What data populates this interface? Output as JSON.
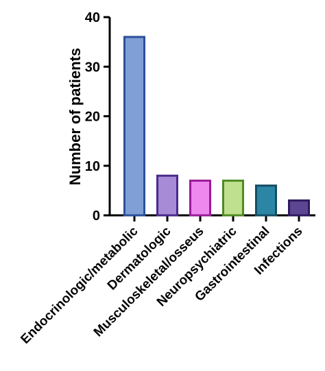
{
  "chart_data": {
    "type": "bar",
    "title": "",
    "xlabel": "",
    "ylabel": "Number of patients",
    "ylim": [
      0,
      40
    ],
    "yticks": [
      "0",
      "10",
      "20",
      "30",
      "40"
    ],
    "categories": [
      "Endocrinologic/metabolic",
      "Dermatologic",
      "Musculoskeletal/osseus",
      "Neuropsychiatric",
      "Gastrointestinal",
      "Infections"
    ],
    "values": [
      36,
      8,
      7,
      7,
      6,
      3
    ],
    "fill_colors": [
      "#7f9fd6",
      "#a88bd6",
      "#ee88ee",
      "#bfe08e",
      "#2b86a6",
      "#5e4592"
    ],
    "stroke_colors": [
      "#2c4f9a",
      "#4a2a8a",
      "#9a1b9a",
      "#4e8a22",
      "#164d64",
      "#2d1a5e"
    ],
    "grid": false,
    "legend": "none"
  }
}
